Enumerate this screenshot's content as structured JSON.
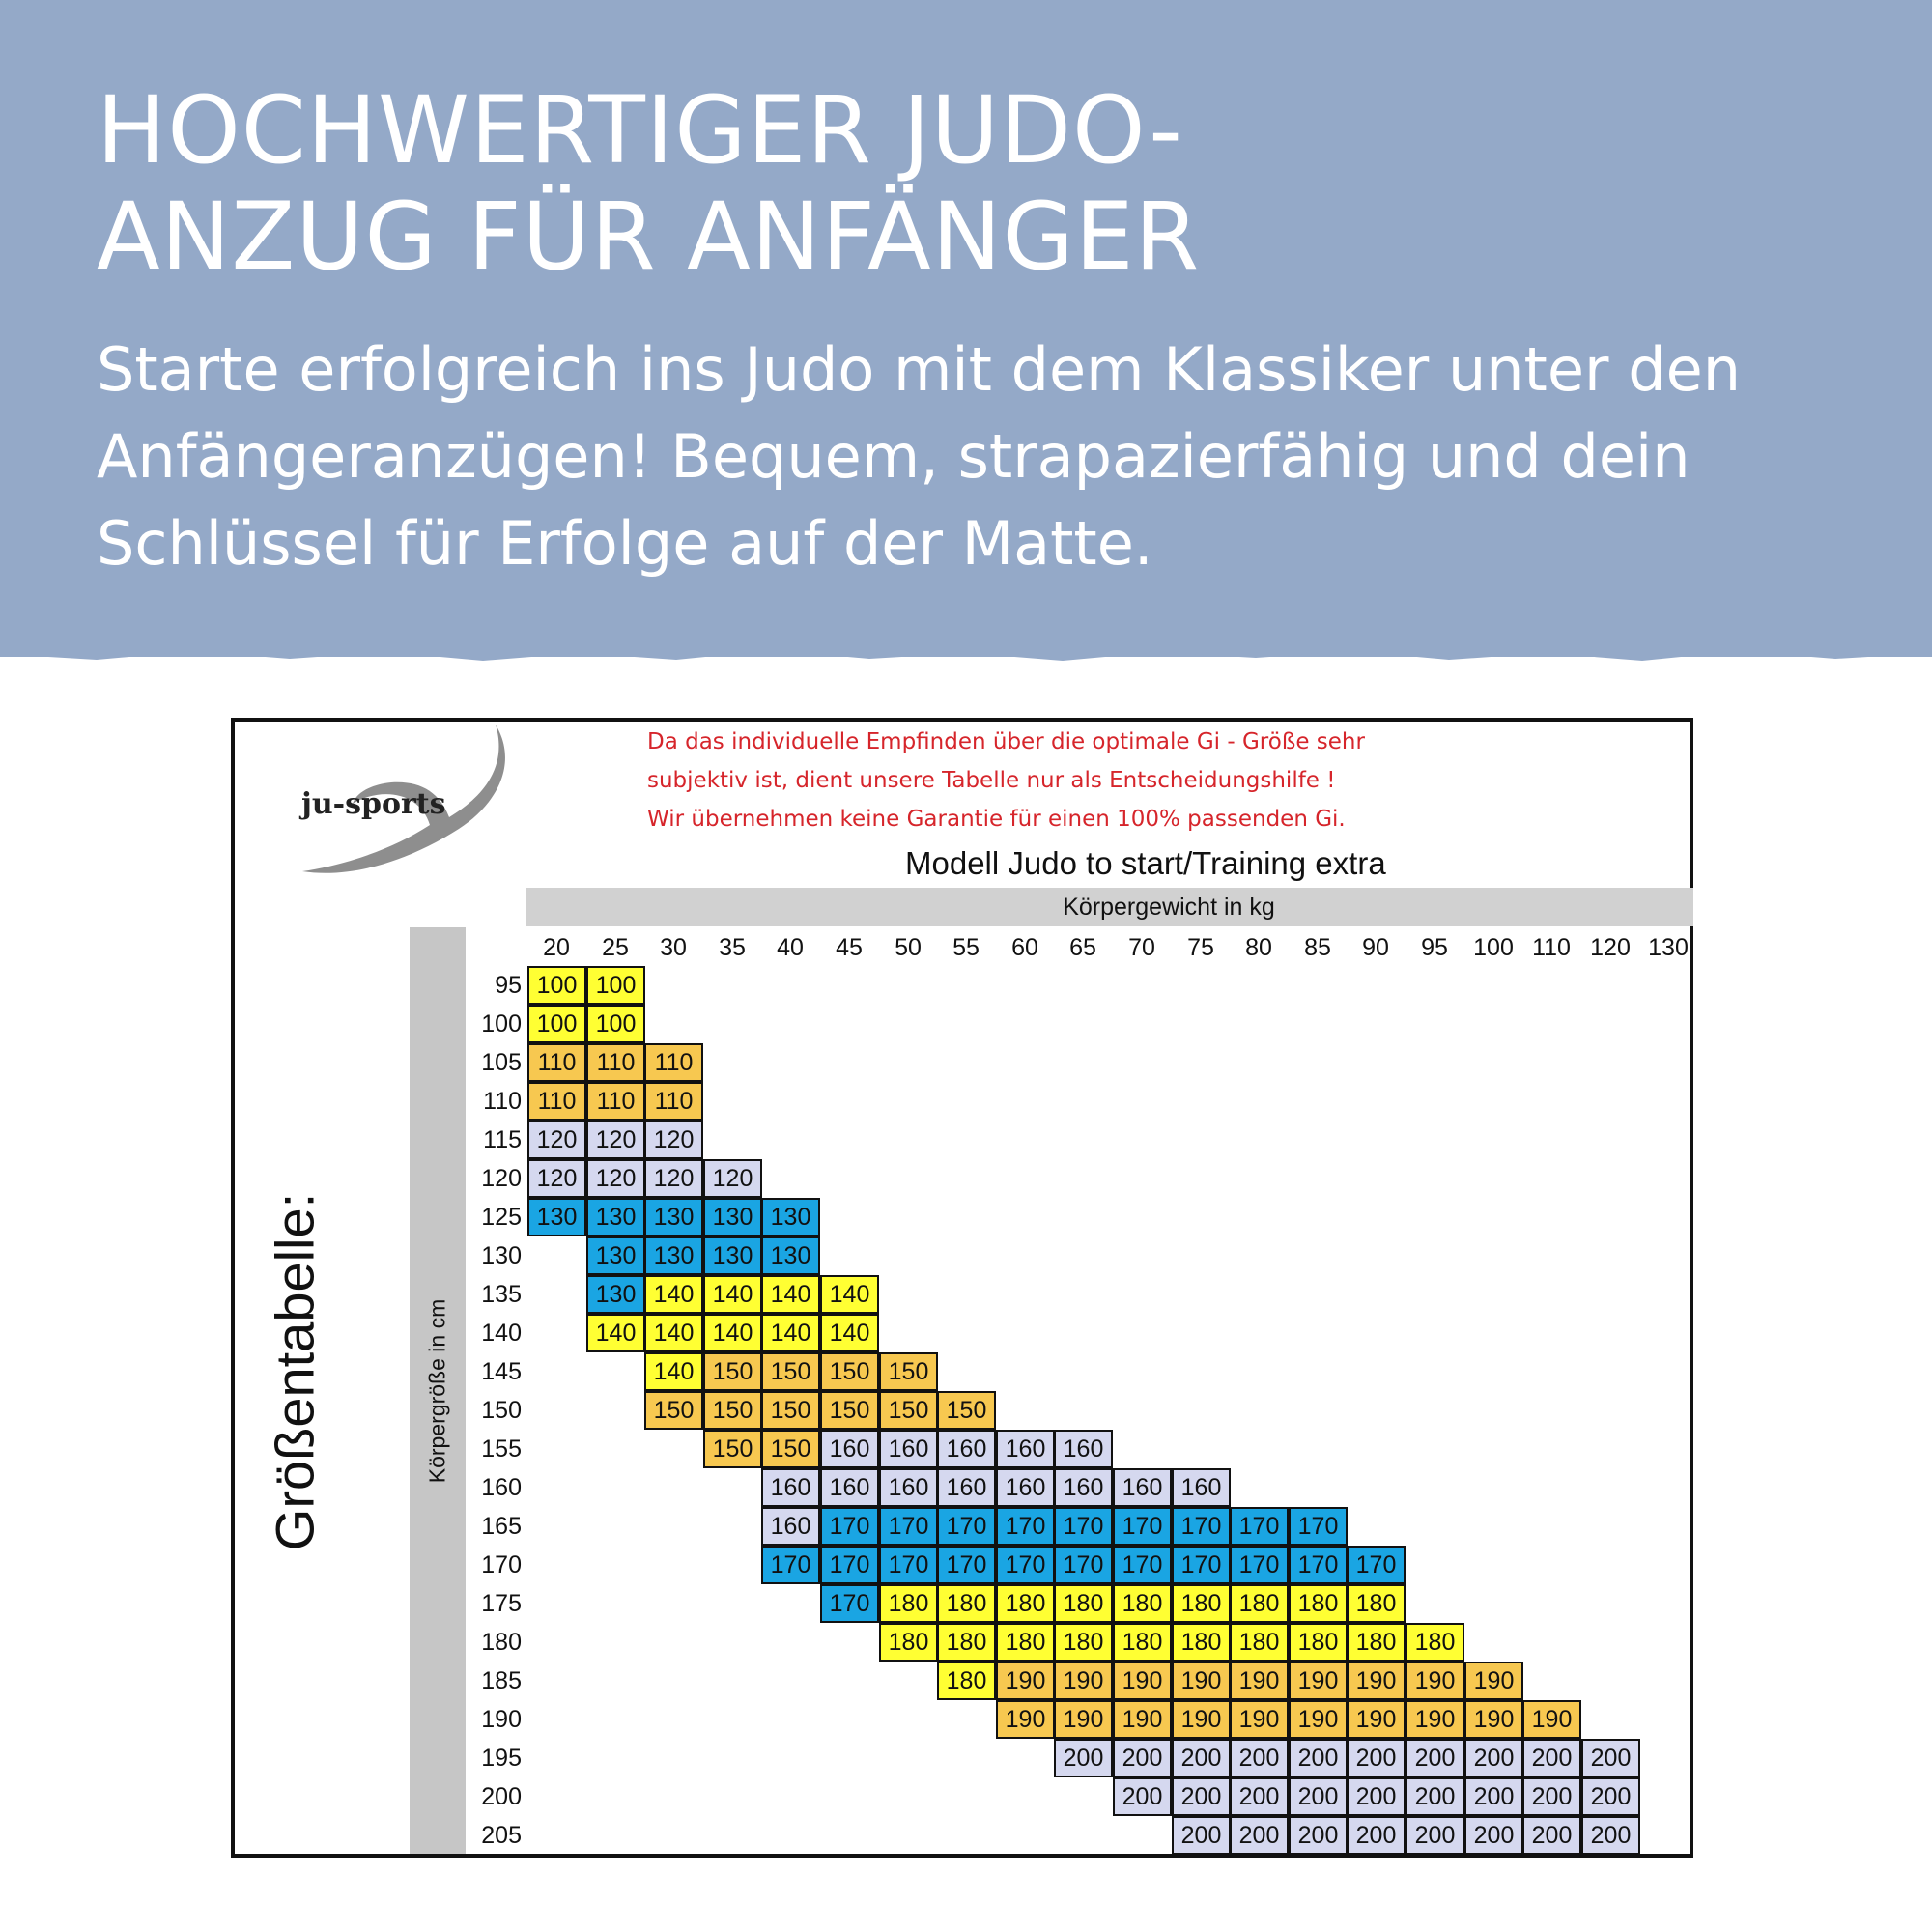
{
  "banner": {
    "headline_lines": [
      "HOCHWERTIGER JUDO-",
      "ANZUG FÜR ANFÄNGER"
    ],
    "subtitle": "Starte erfolgreich ins Judo mit dem Klassiker unter den Anfängeranzügen! Bequem, strapazierfähig und dein Schlüssel für Erfolge auf der Matte.",
    "background_color": "#94a9c8"
  },
  "size_chart": {
    "logo_text": "ju-sports",
    "disclaimer_lines": [
      "Da das individuelle Empfinden über die optimale Gi - Größe sehr",
      "subjektiv ist, dient unsere Tabelle nur als Entscheidungshilfe !",
      "Wir übernehmen keine Garantie für einen 100% passenden Gi."
    ],
    "disclaimer_color": "#d6252b",
    "model_title": "Modell Judo to start/Training extra",
    "weight_axis_label": "Körpergewicht in kg",
    "height_axis_label": "Körpergröße in cm",
    "table_title": "Größentabelle:",
    "weights": [
      "20",
      "25",
      "30",
      "35",
      "40",
      "45",
      "50",
      "55",
      "60",
      "65",
      "70",
      "75",
      "80",
      "85",
      "90",
      "95",
      "100",
      "110",
      "120",
      "130"
    ],
    "heights": [
      "95",
      "100",
      "105",
      "110",
      "115",
      "120",
      "125",
      "130",
      "135",
      "140",
      "145",
      "150",
      "155",
      "160",
      "165",
      "170",
      "175",
      "180",
      "185",
      "190",
      "195",
      "200",
      "205"
    ],
    "rows": [
      {
        "start": 0,
        "sizes": [
          "100",
          "100"
        ]
      },
      {
        "start": 0,
        "sizes": [
          "100",
          "100"
        ]
      },
      {
        "start": 0,
        "sizes": [
          "110",
          "110",
          "110"
        ]
      },
      {
        "start": 0,
        "sizes": [
          "110",
          "110",
          "110"
        ]
      },
      {
        "start": 0,
        "sizes": [
          "120",
          "120",
          "120"
        ]
      },
      {
        "start": 0,
        "sizes": [
          "120",
          "120",
          "120",
          "120"
        ]
      },
      {
        "start": 0,
        "sizes": [
          "130",
          "130",
          "130",
          "130",
          "130"
        ]
      },
      {
        "start": 1,
        "sizes": [
          "130",
          "130",
          "130",
          "130"
        ]
      },
      {
        "start": 1,
        "sizes": [
          "130",
          "140",
          "140",
          "140",
          "140"
        ]
      },
      {
        "start": 1,
        "sizes": [
          "140",
          "140",
          "140",
          "140",
          "140"
        ]
      },
      {
        "start": 2,
        "sizes": [
          "140",
          "150",
          "150",
          "150",
          "150"
        ]
      },
      {
        "start": 2,
        "sizes": [
          "150",
          "150",
          "150",
          "150",
          "150",
          "150"
        ]
      },
      {
        "start": 3,
        "sizes": [
          "150",
          "150",
          "160",
          "160",
          "160",
          "160",
          "160"
        ]
      },
      {
        "start": 4,
        "sizes": [
          "160",
          "160",
          "160",
          "160",
          "160",
          "160",
          "160",
          "160"
        ]
      },
      {
        "start": 4,
        "sizes": [
          "160",
          "170",
          "170",
          "170",
          "170",
          "170",
          "170",
          "170",
          "170",
          "170"
        ]
      },
      {
        "start": 4,
        "sizes": [
          "170",
          "170",
          "170",
          "170",
          "170",
          "170",
          "170",
          "170",
          "170",
          "170",
          "170"
        ]
      },
      {
        "start": 5,
        "sizes": [
          "170",
          "180",
          "180",
          "180",
          "180",
          "180",
          "180",
          "180",
          "180",
          "180"
        ]
      },
      {
        "start": 6,
        "sizes": [
          "180",
          "180",
          "180",
          "180",
          "180",
          "180",
          "180",
          "180",
          "180",
          "180"
        ]
      },
      {
        "start": 7,
        "sizes": [
          "180",
          "190",
          "190",
          "190",
          "190",
          "190",
          "190",
          "190",
          "190",
          "190"
        ]
      },
      {
        "start": 8,
        "sizes": [
          "190",
          "190",
          "190",
          "190",
          "190",
          "190",
          "190",
          "190",
          "190",
          "190"
        ]
      },
      {
        "start": 9,
        "sizes": [
          "200",
          "200",
          "200",
          "200",
          "200",
          "200",
          "200",
          "200",
          "200",
          "200"
        ]
      },
      {
        "start": 10,
        "sizes": [
          "200",
          "200",
          "200",
          "200",
          "200",
          "200",
          "200",
          "200",
          "200"
        ]
      },
      {
        "start": 11,
        "sizes": [
          "200",
          "200",
          "200",
          "200",
          "200",
          "200",
          "200",
          "200"
        ]
      }
    ],
    "size_colors": {
      "100": "#ffff33",
      "110": "#f7c850",
      "120": "#d5d8ef",
      "130": "#1aa5e3",
      "140": "#ffff33",
      "150": "#f7c850",
      "160": "#d5d8ef",
      "170": "#1aa5e3",
      "180": "#ffff33",
      "190": "#f7c850",
      "200": "#d5d8ef"
    }
  }
}
